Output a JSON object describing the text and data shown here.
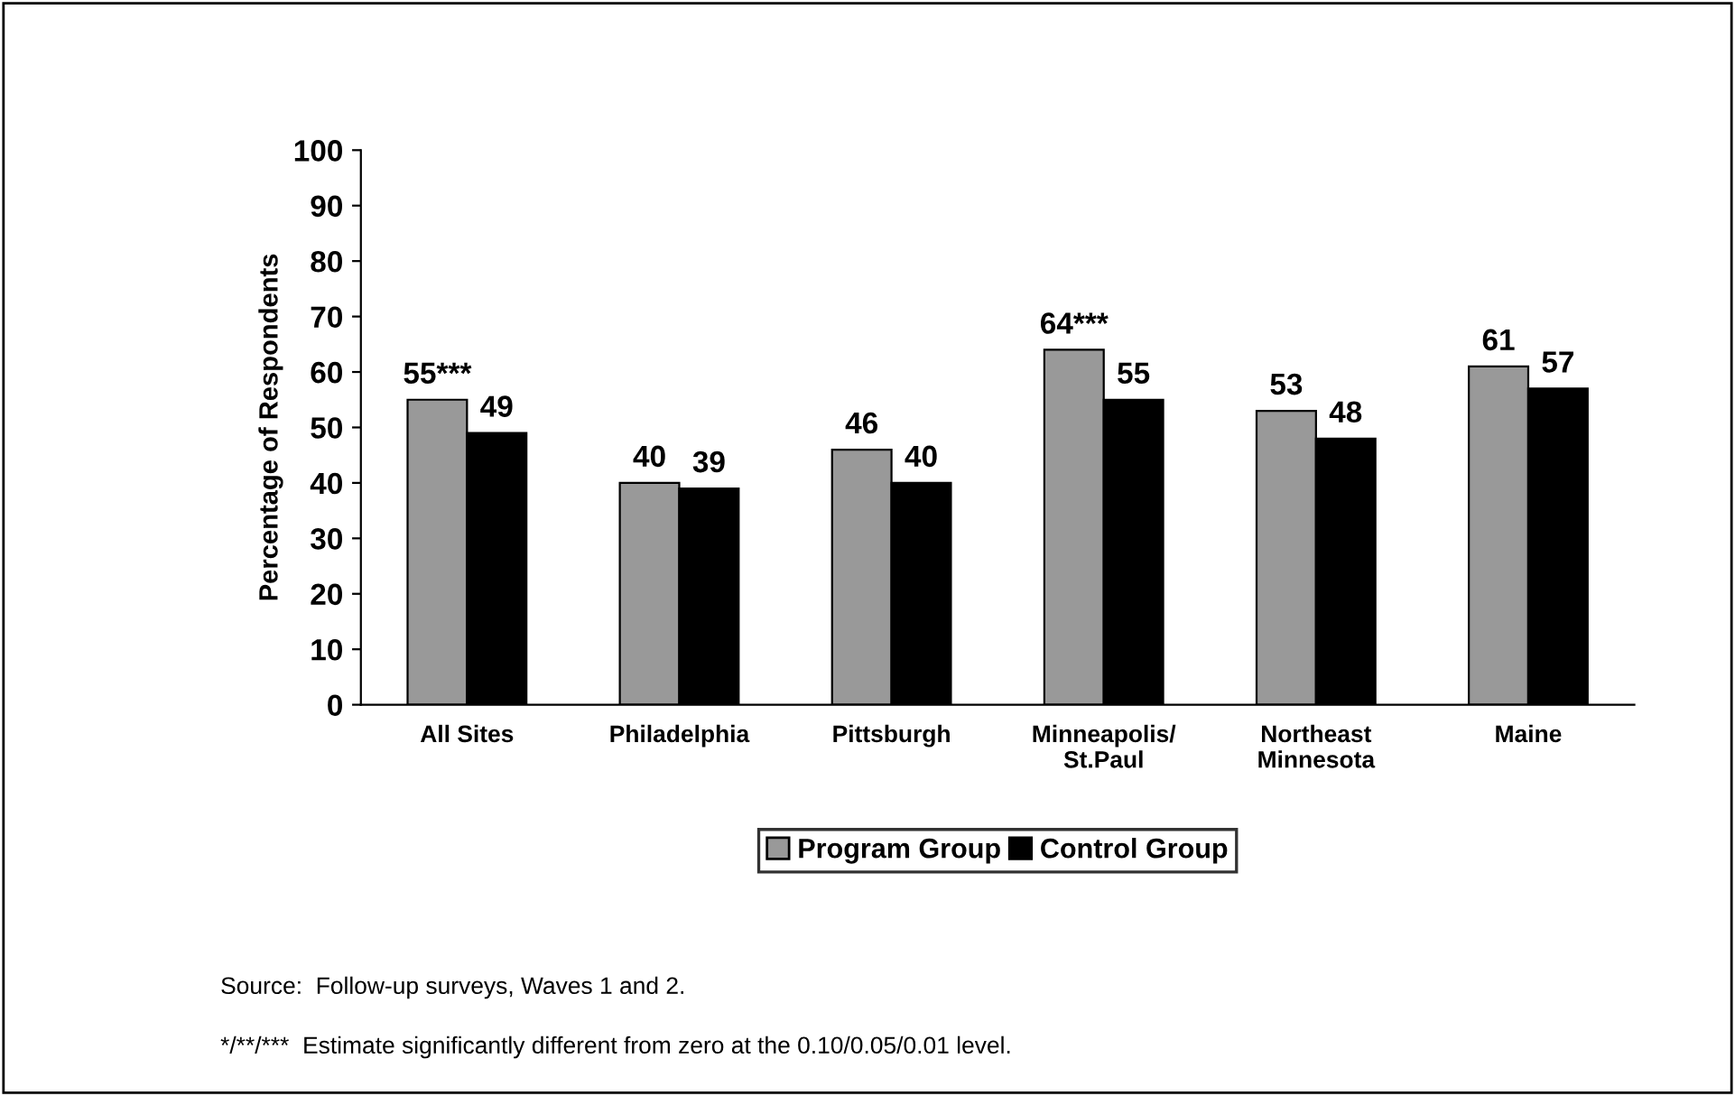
{
  "chart_data": {
    "type": "bar",
    "ylabel": "Percentage of Respondents",
    "categories": [
      "All Sites",
      "Philadelphia",
      "Pittsburgh",
      "Minneapolis/\nSt.Paul",
      "Northeast\nMinnesota",
      "Maine"
    ],
    "series": [
      {
        "name": "Program Group",
        "color": "#999999",
        "values": [
          55,
          40,
          46,
          64,
          53,
          61
        ],
        "value_labels": [
          "55***",
          "40",
          "46",
          "64***",
          "53",
          "61"
        ]
      },
      {
        "name": "Control Group",
        "color": "#000000",
        "values": [
          49,
          39,
          40,
          55,
          48,
          57
        ],
        "value_labels": [
          "49",
          "39",
          "40",
          "55",
          "48",
          "57"
        ]
      }
    ],
    "ylim": [
      0,
      100
    ],
    "yticks": [
      0,
      10,
      20,
      30,
      40,
      50,
      60,
      70,
      80,
      90,
      100
    ],
    "grid": false,
    "legend": "bottom",
    "annotations": [
      "Source:  Follow-up surveys, Waves 1 and 2.",
      "*/**/***  Estimate significantly different from zero at the 0.10/0.05/0.01 level."
    ]
  }
}
